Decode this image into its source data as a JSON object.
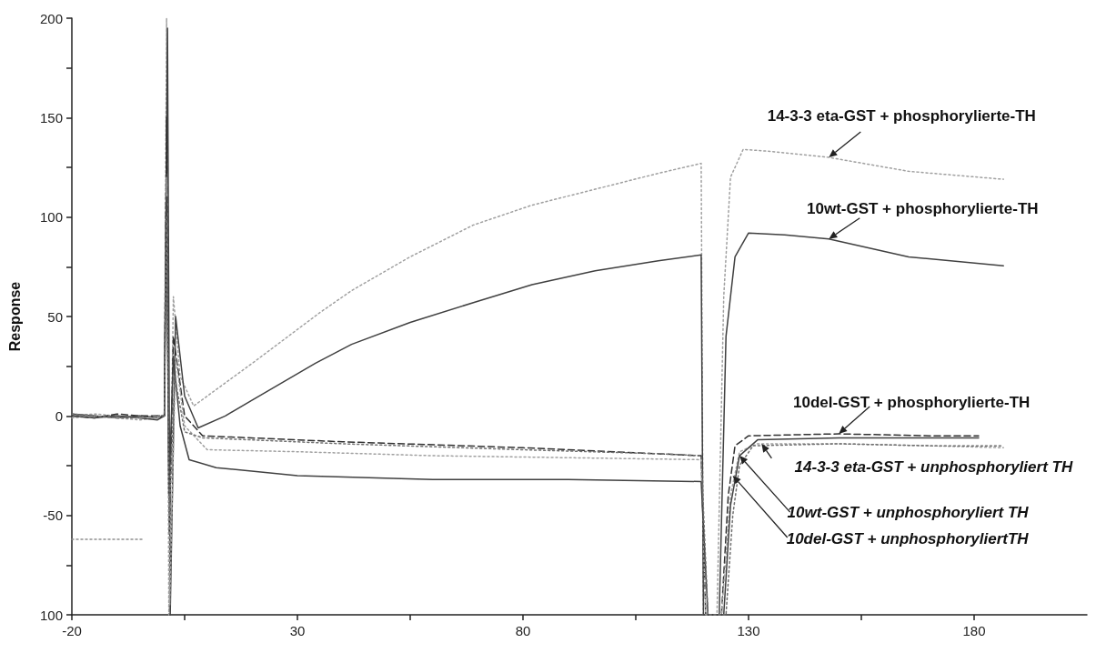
{
  "chart_data": {
    "type": "line",
    "ylabel": "Response",
    "xlim": [
      -20,
      205
    ],
    "xticks": [
      -20,
      {
        "value": 5,
        "label": null
      },
      30,
      {
        "value": 55,
        "label": null
      },
      80,
      {
        "value": 105,
        "label": null
      },
      130,
      {
        "value": 155,
        "label": null
      },
      180
    ],
    "ylim": [
      -100,
      200
    ],
    "yticks": [
      {
        "value": -100,
        "label": "100"
      },
      {
        "value": -75,
        "label": null
      },
      -50,
      {
        "value": -25,
        "label": null
      },
      0,
      {
        "value": 25,
        "label": null
      },
      50,
      {
        "value": 75,
        "label": null
      },
      100,
      {
        "value": 125,
        "label": null
      },
      150,
      {
        "value": 175,
        "label": null
      },
      200
    ],
    "grid": false,
    "marker": "none",
    "series": [
      {
        "color": "#a0a0a0",
        "line_style": "dotted",
        "x": [
          -20,
          -15,
          -10,
          -5,
          -1,
          0.5,
          1,
          1.5,
          2.5,
          4,
          7,
          20,
          35,
          42,
          55,
          69,
          82,
          96,
          110,
          119.5,
          120,
          123,
          124.5,
          126,
          128.8,
          135,
          147.8,
          165.5,
          186.5
        ],
        "values": [
          0,
          1,
          0,
          -1,
          0,
          0,
          200,
          -100,
          60,
          20,
          5,
          26.5,
          52,
          63,
          80,
          96,
          106,
          114,
          122,
          127,
          -100,
          -100,
          60,
          120,
          134,
          133,
          130,
          123,
          119
        ]
      },
      {
        "color": "#404040",
        "line_style": "solid",
        "x": [
          -20,
          -15,
          -10,
          -5,
          -1,
          0.5,
          1.2,
          1.8,
          3,
          5,
          8,
          14,
          20,
          34,
          42,
          55,
          69,
          82,
          96,
          110,
          119.5,
          120,
          123.5,
          125,
          127,
          130,
          138,
          147.8,
          165.5,
          186.5
        ],
        "values": [
          1,
          0,
          -1,
          0,
          -1,
          0,
          195,
          -100,
          50,
          10,
          -6,
          0,
          8,
          26.5,
          36,
          47,
          57,
          66,
          73,
          78,
          81,
          -100,
          -100,
          40,
          80,
          92,
          91,
          89,
          80,
          75.5
        ]
      },
      {
        "color": "#303030",
        "line_style": "dashed",
        "x": [
          -20,
          -15,
          -10,
          -5,
          -1,
          0.5,
          1,
          1.6,
          2.5,
          5,
          9,
          40,
          80,
          110,
          119.5,
          120.5,
          124,
          125.5,
          127,
          130,
          150,
          170,
          181
        ],
        "values": [
          0,
          -1,
          1,
          0,
          0,
          0,
          150,
          -60,
          40,
          0,
          -10,
          -13,
          -16,
          -19,
          -20,
          -100,
          -100,
          -40,
          -15,
          -10,
          -9,
          -10,
          -10
        ]
      },
      {
        "color": "#a0a0a0",
        "line_style": "dotted",
        "x": [
          -20,
          -15,
          -10,
          -5,
          -1,
          0.5,
          1,
          1.7,
          3,
          5,
          10,
          30,
          60,
          90,
          119.5,
          120.5,
          124,
          126,
          128,
          132,
          150,
          170,
          186.5
        ],
        "values": [
          -1,
          0,
          -1,
          -2,
          -1,
          0,
          120,
          -95,
          30,
          -5,
          -17,
          -18,
          -20,
          -21,
          -22,
          -100,
          -100,
          -40,
          -18,
          -14,
          -14,
          -15,
          -16
        ]
      },
      {
        "color": "#404040",
        "line_style": "solid",
        "x": [
          -20,
          -15,
          -10,
          -5,
          -1,
          0.5,
          1,
          1.5,
          2.5,
          4,
          6,
          12,
          30,
          60,
          90,
          119.5,
          121,
          124.5,
          126,
          128,
          132,
          150,
          170,
          181
        ],
        "values": [
          0,
          -1,
          0,
          -1,
          -2,
          0,
          110,
          -40,
          30,
          -5,
          -22,
          -26,
          -30,
          -32,
          -32,
          -33,
          -100,
          -100,
          -45,
          -20,
          -12,
          -11,
          -11,
          -11
        ]
      },
      {
        "color": "#707070",
        "line_style": "dotted",
        "x": [
          -20,
          -15,
          -10,
          -5,
          -1,
          0.5,
          1,
          1.6,
          2.8,
          5,
          9,
          40,
          80,
          110,
          119.5,
          121,
          125,
          126.5,
          128,
          131,
          150,
          170,
          186.5
        ],
        "values": [
          1,
          0,
          -1,
          -1,
          0,
          0,
          100,
          -50,
          20,
          -8,
          -11,
          -14,
          -17,
          -19,
          -20,
          -100,
          -100,
          -50,
          -25,
          -15,
          -14,
          -15,
          -15
        ]
      },
      {
        "color": "#909090",
        "line_style": "dotted",
        "x": [
          -20,
          -4
        ],
        "values": [
          -62,
          -62
        ]
      }
    ],
    "annotations": [
      {
        "text": "14-3-3 eta-GST + phosphorylierte-TH",
        "x": 147.8,
        "y": 130
      },
      {
        "text": "10wt-GST + phosphorylierte-TH",
        "x": 147.8,
        "y": 89
      },
      {
        "text": "10del-GST + phosphorylierte-TH",
        "x": 150,
        "y": -9
      },
      {
        "text": "14-3-3 eta-GST + unphosphoryliert TH",
        "x": 132.9,
        "y": -14
      },
      {
        "text": "10wt-GST + unphosphoryliert TH",
        "x": 128,
        "y": -20
      },
      {
        "text": "10del-GST + unphosphoryliertTH",
        "x": 126.5,
        "y": -30
      }
    ]
  }
}
